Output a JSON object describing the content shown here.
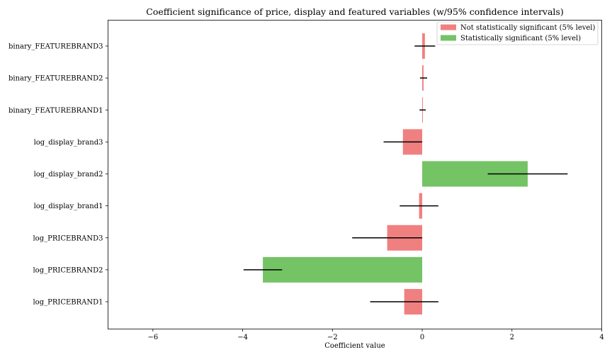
{
  "chart_data": {
    "type": "bar",
    "orientation": "horizontal",
    "title": "Coefficient significance of price, display and featured variables (w/95% confidence intervals)",
    "xlabel": "Coefficient value",
    "ylabel": "",
    "xlim": [
      -7,
      4
    ],
    "xticks": [
      -6,
      -4,
      -2,
      0,
      2,
      4
    ],
    "xtick_labels": [
      "−6",
      "−4",
      "−2",
      "0",
      "2",
      "4"
    ],
    "grid": false,
    "legend_position": "top-right",
    "legend": [
      {
        "key": "not_sig",
        "label": "Not statistically significant (5% level)",
        "color": "#f08080"
      },
      {
        "key": "sig",
        "label": "Statistically significant (5% level)",
        "color": "#74c365"
      }
    ],
    "colors": {
      "not_sig": "#f08080",
      "sig": "#74c365",
      "errorbar": "#000000"
    },
    "categories": [
      "log_PRICEBRAND1",
      "log_PRICEBRAND2",
      "log_PRICEBRAND3",
      "log_display_brand1",
      "log_display_brand2",
      "log_display_brand3",
      "binary_FEATUREBRAND1",
      "binary_FEATUREBRAND2",
      "binary_FEATUREBRAND3"
    ],
    "values": [
      -0.4,
      -3.55,
      -0.78,
      -0.07,
      2.35,
      -0.43,
      0.01,
      0.03,
      0.06
    ],
    "ci_low": [
      -1.16,
      -3.98,
      -1.56,
      -0.5,
      1.46,
      -0.86,
      -0.06,
      -0.05,
      -0.17
    ],
    "ci_high": [
      0.36,
      -3.12,
      0.0,
      0.36,
      3.24,
      0.0,
      0.08,
      0.11,
      0.29
    ],
    "significant": [
      false,
      true,
      false,
      false,
      true,
      false,
      false,
      false,
      false
    ]
  }
}
